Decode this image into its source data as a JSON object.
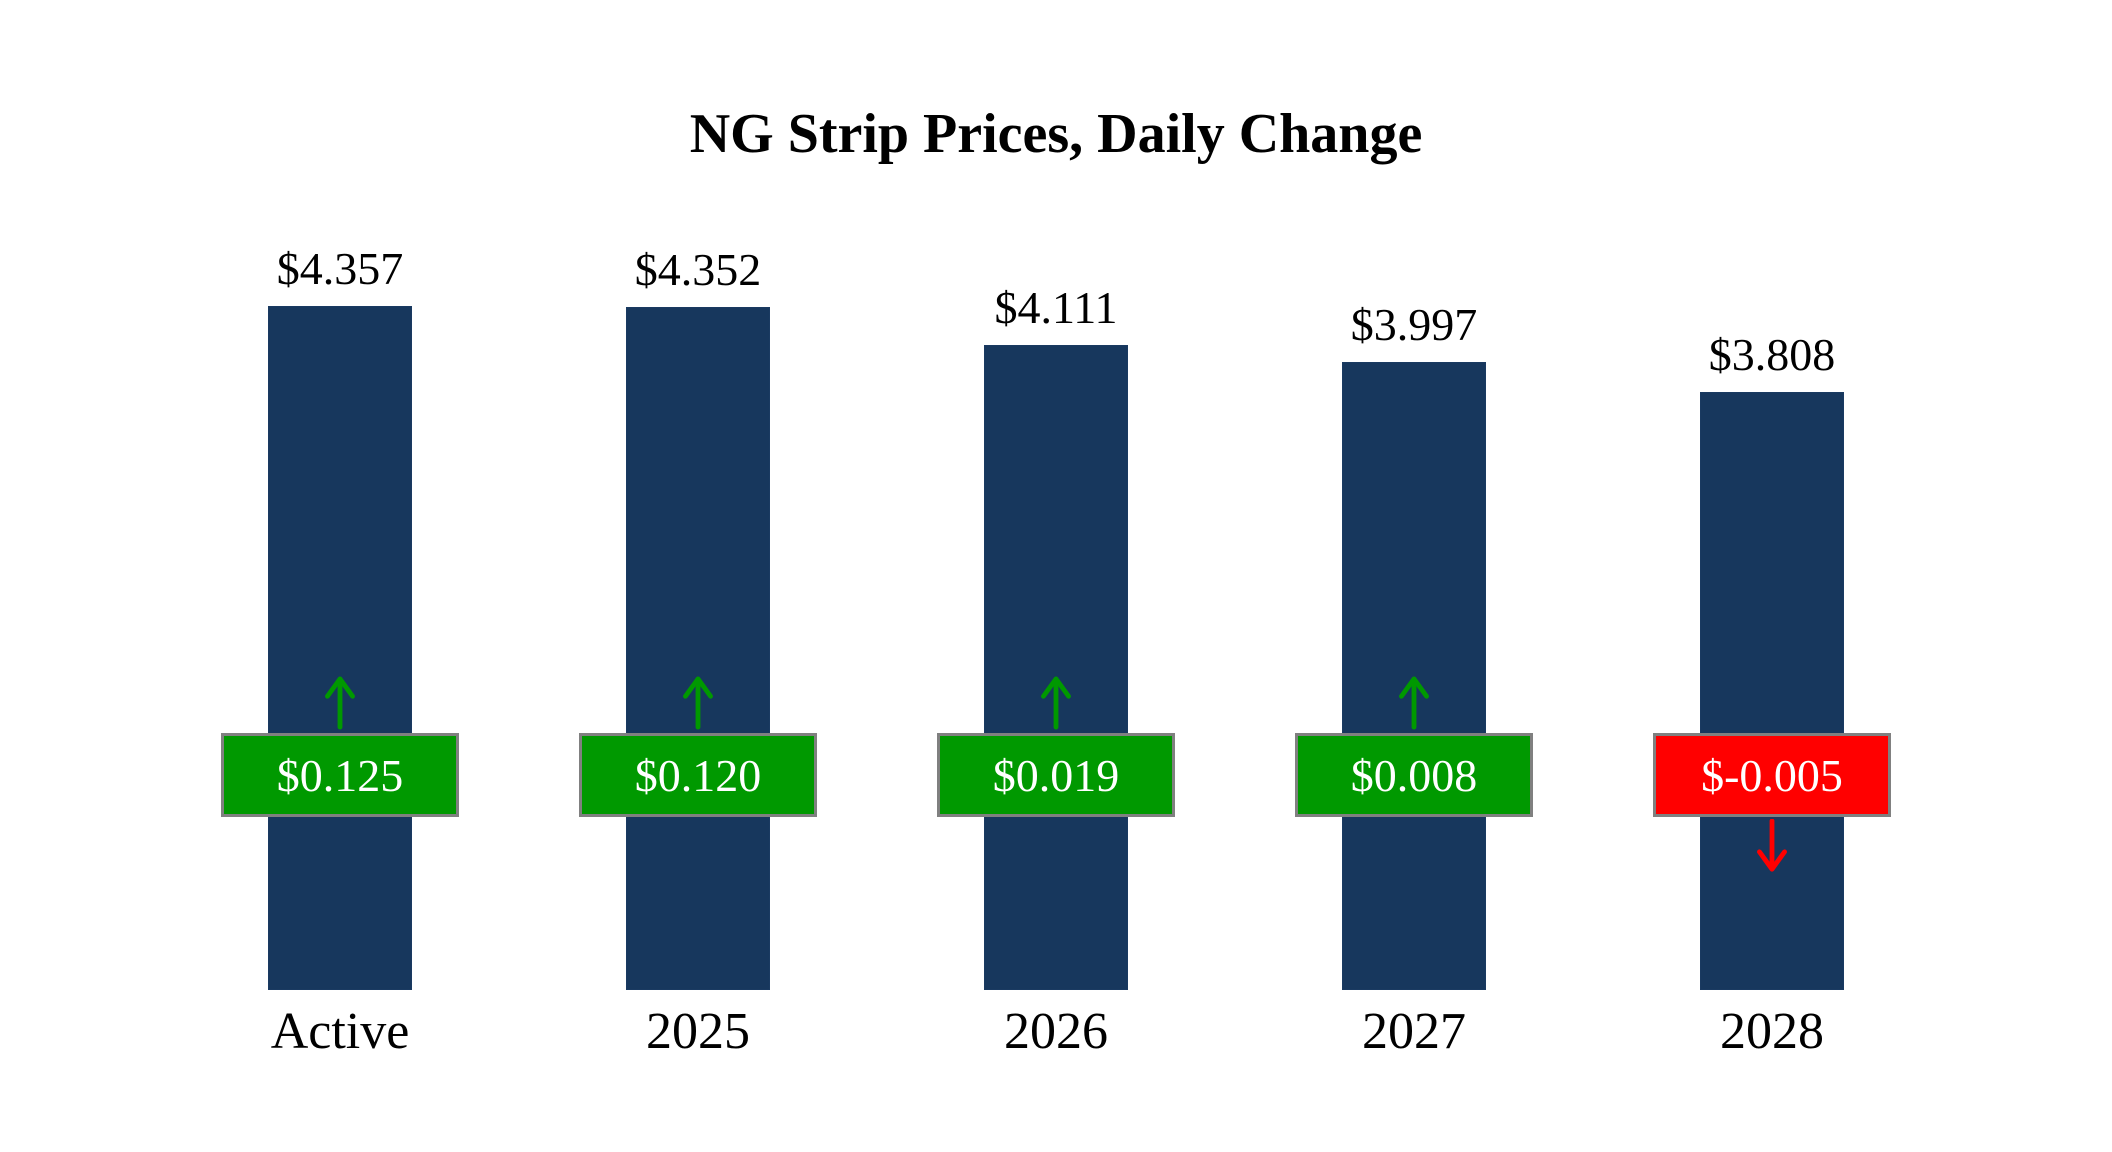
{
  "chart_data": {
    "type": "bar",
    "title": "NG Strip Prices, Daily Change",
    "categories": [
      "Active",
      "2025",
      "2026",
      "2027",
      "2028"
    ],
    "values": [
      4.357,
      4.352,
      4.111,
      3.997,
      3.808
    ],
    "changes": [
      0.125,
      0.12,
      0.019,
      0.008,
      -0.005
    ],
    "bars": [
      {
        "category": "Active",
        "value": 4.357,
        "value_label": "$4.357",
        "change": 0.125,
        "change_label": "$0.125",
        "direction": "up"
      },
      {
        "category": "2025",
        "value": 4.352,
        "value_label": "$4.352",
        "change": 0.12,
        "change_label": "$0.120",
        "direction": "up"
      },
      {
        "category": "2026",
        "value": 4.111,
        "value_label": "$4.111",
        "change": 0.019,
        "change_label": "$0.019",
        "direction": "up"
      },
      {
        "category": "2027",
        "value": 3.997,
        "value_label": "$3.997",
        "change": 0.008,
        "change_label": "$0.008",
        "direction": "up"
      },
      {
        "category": "2028",
        "value": 3.808,
        "value_label": "$3.808",
        "change": -0.005,
        "change_label": "$-0.005",
        "direction": "down"
      }
    ],
    "ylim": [
      0,
      4.357
    ],
    "grid": false,
    "legend": false,
    "colors": {
      "bar": "#17375D",
      "up": "#009900",
      "down": "#FF0000",
      "badge_border": "#808080",
      "badge_text": "#FFFFFF"
    }
  }
}
